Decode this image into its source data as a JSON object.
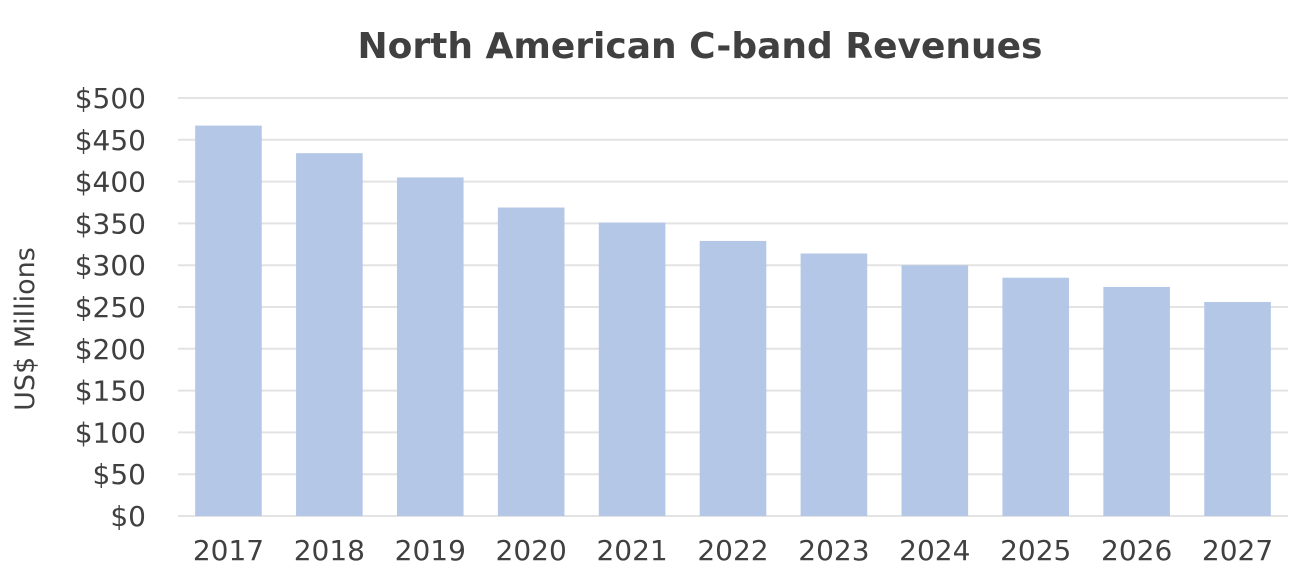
{
  "chart_data": {
    "type": "bar",
    "title": "North American C-band Revenues",
    "xlabel": "",
    "ylabel": "US$ Millions",
    "categories": [
      "2017",
      "2018",
      "2019",
      "2020",
      "2021",
      "2022",
      "2023",
      "2024",
      "2025",
      "2026",
      "2027"
    ],
    "values": [
      467,
      434,
      405,
      369,
      351,
      329,
      314,
      300,
      285,
      274,
      256
    ],
    "ylim": [
      0,
      500
    ],
    "yticks": [
      0,
      50,
      100,
      150,
      200,
      250,
      300,
      350,
      400,
      450,
      500
    ],
    "ytick_labels": [
      "$0",
      "$50",
      "$100",
      "$150",
      "$200",
      "$250",
      "$300",
      "$350",
      "$400",
      "$450",
      "$500"
    ],
    "grid": true,
    "legend": "none",
    "colors": {
      "bar": "#b4c7e7",
      "grid": "#e3e3e3",
      "text": "#404040"
    }
  }
}
